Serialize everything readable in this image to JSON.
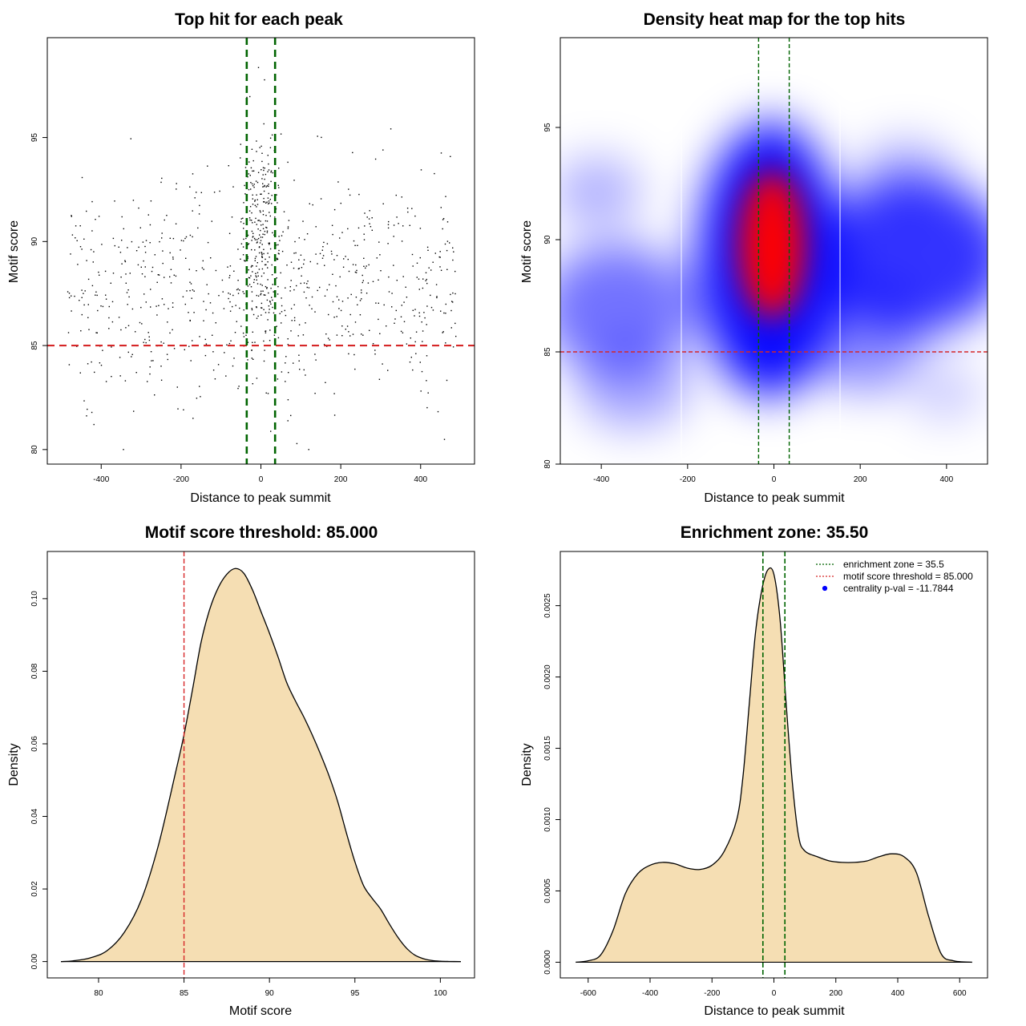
{
  "chart_data": [
    {
      "type": "scatter",
      "title": "Top hit for each peak",
      "xlabel": "Distance to peak summit",
      "ylabel": "Motif score",
      "xlim": [
        -535,
        535
      ],
      "ylim": [
        79.3,
        99.8
      ],
      "xticks": [
        -400,
        -200,
        0,
        200,
        400
      ],
      "yticks": [
        80,
        85,
        90,
        95
      ],
      "xtick_labels": [
        "-400",
        "-200",
        "0",
        "200",
        "400"
      ],
      "ytick_labels": [
        "80",
        "85",
        "90",
        "95"
      ],
      "threshold": 85,
      "zone": 35.5,
      "threshold_color": "#d62728",
      "zone_color": "#006400",
      "point_color": "#000000",
      "n_points": 1000
    },
    {
      "type": "heatmap",
      "title": "Density heat map for the top hits",
      "xlabel": "Distance to peak summit",
      "ylabel": "Motif score",
      "xlim": [
        -495,
        495
      ],
      "ylim": [
        80,
        99
      ],
      "xticks": [
        -400,
        -200,
        0,
        200,
        400
      ],
      "yticks": [
        80,
        85,
        90,
        95
      ],
      "xtick_labels": [
        "-400",
        "-200",
        "0",
        "200",
        "400"
      ],
      "ytick_labels": [
        "80",
        "85",
        "90",
        "95"
      ],
      "threshold": 85,
      "zone": 35.5,
      "colors": [
        "#ffffff",
        "#0000ff",
        "#ff0000"
      ]
    },
    {
      "type": "area",
      "title": "Motif score threshold: 85.000",
      "xlabel": "Motif score",
      "ylabel": "Density",
      "xlim": [
        77,
        102
      ],
      "ylim": [
        -0.0045,
        0.113
      ],
      "xticks": [
        80,
        85,
        90,
        95,
        100
      ],
      "yticks": [
        0,
        0.02,
        0.04,
        0.06,
        0.08,
        0.1
      ],
      "xtick_labels": [
        "80",
        "85",
        "90",
        "95",
        "100"
      ],
      "ytick_labels": [
        "0.00",
        "0.02",
        "0.04",
        "0.06",
        "0.08",
        "0.10"
      ],
      "x": [
        77.8,
        78.5,
        79.5,
        80.5,
        81.5,
        82.5,
        83.5,
        84.5,
        85,
        85.5,
        86,
        86.5,
        87,
        87.5,
        88,
        88.5,
        89,
        89.5,
        90,
        90.5,
        91,
        91.5,
        92,
        92.5,
        93,
        93.5,
        94,
        94.5,
        95,
        95.5,
        96,
        96.5,
        97,
        97.5,
        98,
        98.5,
        99,
        99.5,
        100,
        100.5,
        101.2
      ],
      "values": [
        0,
        0.0002,
        0.001,
        0.003,
        0.008,
        0.017,
        0.032,
        0.052,
        0.0625,
        0.075,
        0.088,
        0.097,
        0.103,
        0.1067,
        0.1083,
        0.107,
        0.1025,
        0.0965,
        0.0905,
        0.084,
        0.077,
        0.072,
        0.0675,
        0.0625,
        0.057,
        0.051,
        0.044,
        0.0355,
        0.0275,
        0.021,
        0.0175,
        0.0145,
        0.0105,
        0.0068,
        0.0038,
        0.0018,
        0.0008,
        0.0003,
        0.0001,
        3e-05,
        0
      ],
      "threshold": 85,
      "fill_color": "#f5deb3",
      "line_color": "#000000",
      "threshold_color": "#d62728"
    },
    {
      "type": "area",
      "title": "Enrichment zone: 35.50",
      "xlabel": "Distance to peak summit",
      "ylabel": "Density",
      "xlim": [
        -690,
        690
      ],
      "ylim": [
        -0.00011,
        0.00288
      ],
      "xticks": [
        -600,
        -400,
        -200,
        0,
        200,
        400,
        600
      ],
      "yticks": [
        0,
        0.0005,
        0.001,
        0.0015,
        0.002,
        0.0025
      ],
      "xtick_labels": [
        "-600",
        "-400",
        "-200",
        "0",
        "200",
        "400",
        "600"
      ],
      "ytick_labels": [
        "0.0000",
        "0.0005",
        "0.0010",
        "0.0015",
        "0.0020",
        "0.0025"
      ],
      "x": [
        -640,
        -600,
        -560,
        -520,
        -480,
        -440,
        -400,
        -360,
        -320,
        -280,
        -240,
        -200,
        -160,
        -120,
        -100,
        -80,
        -60,
        -40,
        -20,
        0,
        20,
        40,
        60,
        80,
        100,
        140,
        180,
        220,
        260,
        300,
        340,
        380,
        420,
        460,
        500,
        540,
        580,
        640
      ],
      "values": [
        0,
        1e-05,
        5e-05,
        0.00022,
        0.00048,
        0.00062,
        0.00068,
        0.0007,
        0.00069,
        0.00066,
        0.00065,
        0.00068,
        0.00078,
        0.001,
        0.0013,
        0.0018,
        0.0023,
        0.0026,
        0.00275,
        0.00272,
        0.0024,
        0.0018,
        0.00125,
        0.00088,
        0.00078,
        0.00074,
        0.00071,
        0.0007,
        0.0007,
        0.00071,
        0.00074,
        0.00076,
        0.00074,
        0.00063,
        0.00032,
        6e-05,
        1e-05,
        0
      ],
      "zone": 35.5,
      "fill_color": "#f5deb3",
      "line_color": "#000000",
      "zone_color": "#006400",
      "legend": {
        "entries": [
          {
            "label": "enrichment zone = 35.5",
            "color": "#006400",
            "style": "dotted"
          },
          {
            "label": "motif score threshold = 85.000",
            "color": "#d62728",
            "style": "dotted"
          },
          {
            "label": "centrality p-val = -11.7844",
            "color": "#0000ff",
            "style": "point"
          }
        ],
        "placement": "top-right"
      }
    }
  ]
}
